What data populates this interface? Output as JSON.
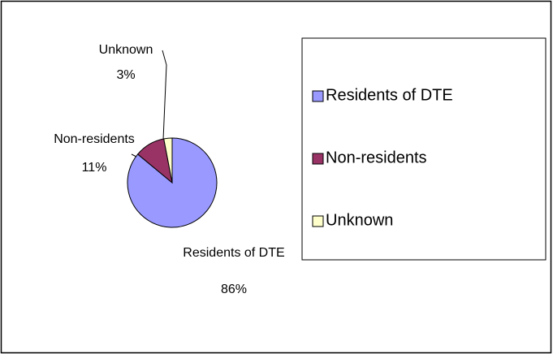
{
  "chart_data": {
    "type": "pie",
    "categories": [
      "Residents of DTE",
      "Non-residents",
      "Unknown"
    ],
    "values": [
      86,
      11,
      3
    ],
    "value_labels": [
      "86%",
      "11%",
      "3%"
    ],
    "colors": [
      "#9999ff",
      "#993366",
      "#ffffcc"
    ],
    "legend": "right"
  }
}
